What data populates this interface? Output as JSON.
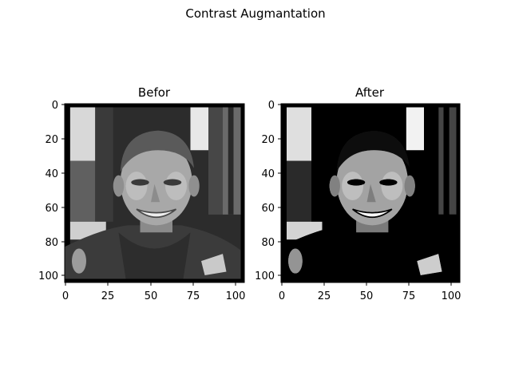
{
  "figure": {
    "title": "Contrast Augmantation"
  },
  "panels": [
    {
      "title": "Befor",
      "image_desc": "grayscale portrait photo",
      "contrast": 1.0,
      "x_ticks": [
        "0",
        "25",
        "50",
        "75",
        "100"
      ],
      "y_ticks": [
        "0",
        "20",
        "40",
        "60",
        "80",
        "100"
      ]
    },
    {
      "title": "After",
      "image_desc": "grayscale portrait photo, higher contrast",
      "contrast": 1.25,
      "x_ticks": [
        "0",
        "25",
        "50",
        "75",
        "100"
      ],
      "y_ticks": [
        "0",
        "20",
        "40",
        "60",
        "80",
        "100"
      ]
    }
  ]
}
